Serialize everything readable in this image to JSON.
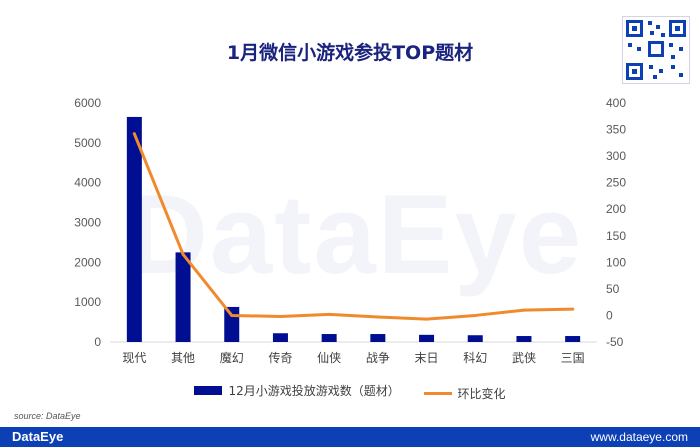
{
  "header": {
    "title": "1月微信小游戏参投TOP题材"
  },
  "watermark": {
    "text": "DataEye"
  },
  "legend": {
    "bar_label": "12月小游戏投放游戏数（题材）",
    "line_label": "环比变化"
  },
  "footer": {
    "source": "source: DataEye",
    "brand": "DataEye",
    "site": "www.dataeye.com"
  },
  "colors": {
    "bar": "#000e91",
    "line": "#f08a2c",
    "footer": "#0d3fb5"
  },
  "chart_data": {
    "type": "bar",
    "title": "1月微信小游戏参投TOP题材",
    "categories": [
      "现代",
      "其他",
      "魔幻",
      "传奇",
      "仙侠",
      "战争",
      "末日",
      "科幻",
      "武侠",
      "三国"
    ],
    "series": [
      {
        "name": "12月小游戏投放游戏数（题材）",
        "type": "bar",
        "axis": "left",
        "values": [
          5650,
          2250,
          880,
          220,
          200,
          200,
          180,
          170,
          150,
          150
        ]
      },
      {
        "name": "环比变化",
        "type": "line",
        "axis": "right",
        "values": [
          342,
          115,
          0,
          -2,
          2,
          -3,
          -7,
          0,
          10,
          12
        ]
      }
    ],
    "y_left": {
      "min": 0,
      "max": 6000,
      "ticks": [
        0,
        1000,
        2000,
        3000,
        4000,
        5000,
        6000
      ]
    },
    "y_right": {
      "min": -50,
      "max": 400,
      "ticks": [
        -50,
        0,
        50,
        100,
        150,
        200,
        250,
        300,
        350,
        400
      ]
    },
    "grid": false,
    "legend_position": "bottom"
  }
}
